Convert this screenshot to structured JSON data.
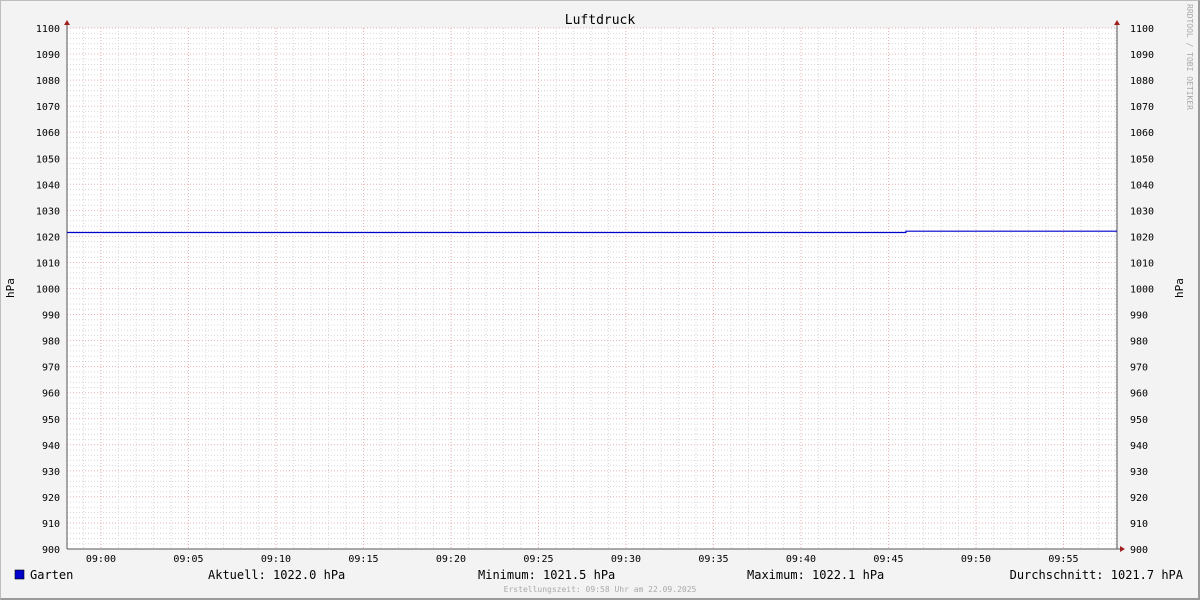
{
  "chart_data": {
    "type": "line",
    "title": "Luftdruck",
    "ylabel": "hPa",
    "ylabel_right": "hPa",
    "ylim": [
      900,
      1100
    ],
    "y_ticks": [
      900,
      910,
      920,
      930,
      940,
      950,
      960,
      970,
      980,
      990,
      1000,
      1010,
      1020,
      1030,
      1040,
      1050,
      1060,
      1070,
      1080,
      1090,
      1100
    ],
    "xlim": [
      "08:58",
      "09:58"
    ],
    "x_ticks": [
      "09:00",
      "09:05",
      "09:10",
      "09:15",
      "09:20",
      "09:25",
      "09:30",
      "09:35",
      "09:40",
      "09:45",
      "09:50",
      "09:55"
    ],
    "grid": true,
    "series": [
      {
        "name": "Garten",
        "color": "#0000cc",
        "x": [
          "08:58",
          "09:46",
          "09:46",
          "09:58"
        ],
        "y": [
          1021.5,
          1021.5,
          1022.0,
          1022.0
        ]
      }
    ],
    "legend": {
      "name": "Garten",
      "current": "Aktuell: 1022.0 hPa",
      "minimum": "Minimum: 1021.5 hPa",
      "maximum": "Maximum: 1022.1 hPa",
      "average": "Durchschnitt: 1021.7 hPA"
    },
    "footer": "Erstellungszeit: 09:58 Uhr am 22.09.2025",
    "watermark": "RRDTOOL / TOBI OETIKER"
  }
}
